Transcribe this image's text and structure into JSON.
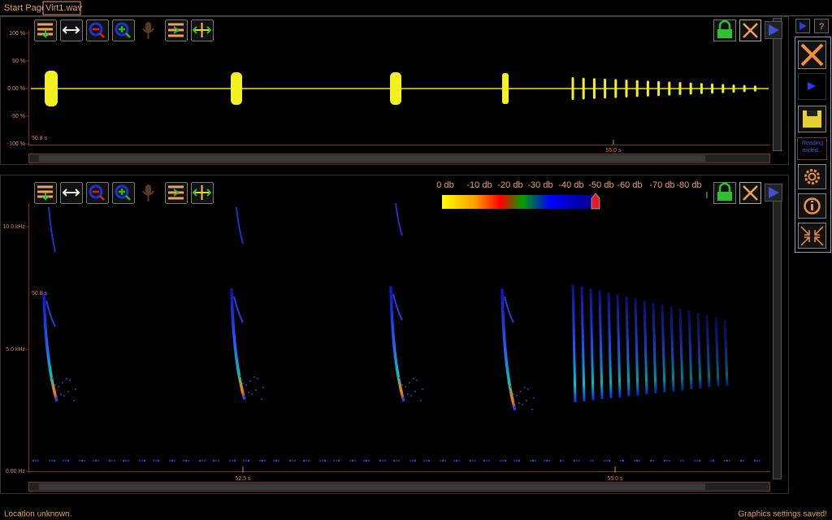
{
  "tabs": [
    "Start Page",
    "Virt1.wav"
  ],
  "waveform": {
    "y_labels": [
      "100 %",
      "50 %",
      "0.00 %",
      "-50 %",
      "-100 %"
    ],
    "time_start": "50.8 s",
    "x_labels": [
      "55.0 s"
    ]
  },
  "spectrogram": {
    "y_labels": [
      "10.0 kHz",
      "5.0 kHz",
      "0.00 Hz"
    ],
    "time_start": "50.8 s",
    "x_labels": [
      "52.5 s",
      "55.0 s"
    ],
    "color_scale": [
      "0 db",
      "-10 db",
      "-20 db",
      "-30 db",
      "-40 db",
      "-50 db",
      "-60 db",
      "-70 db",
      "-80 db"
    ]
  },
  "sidebar": {
    "help": "?",
    "status": "Reading ended..."
  },
  "status_bar": {
    "left": "Location unknown.",
    "right": "Graphics settings saved!"
  }
}
